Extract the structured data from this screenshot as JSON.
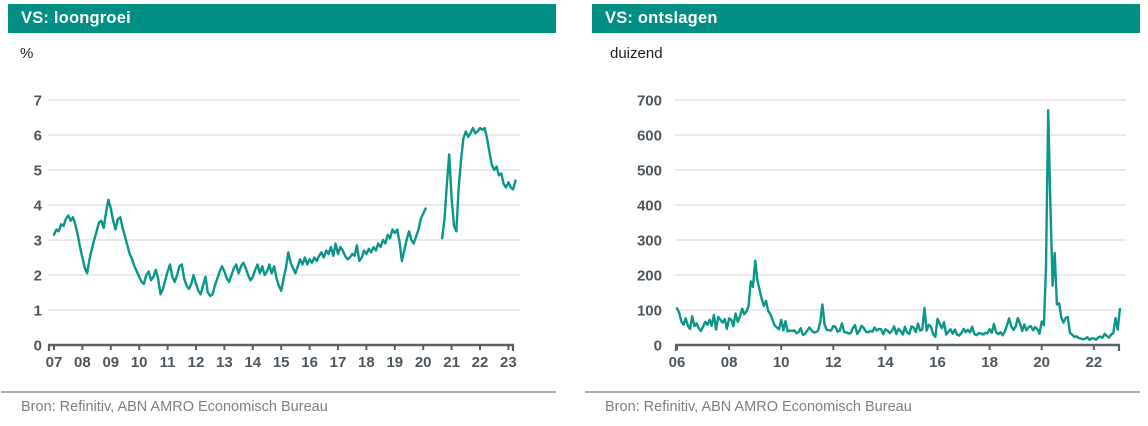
{
  "panels": [
    {
      "title": "VS: loongroei",
      "unit": "%",
      "source": "Bron: Refinitiv, ABN AMRO Economisch Bureau"
    },
    {
      "title": "VS: ontslagen",
      "unit": "duizend",
      "source": "Bron: Refinitiv, ABN AMRO Economisch Bureau"
    }
  ],
  "colors": {
    "header_background": "#008f82",
    "line": "#0a9688",
    "gridline": "#e4e4e4",
    "axis": "#5a6166",
    "tick_text": "#4f575e",
    "source_text": "#7d8184"
  },
  "chart_data": [
    {
      "type": "line",
      "title": "VS: loongroei",
      "ylabel": "%",
      "ylim": [
        0,
        7
      ],
      "yticks": [
        0,
        1,
        2,
        3,
        4,
        5,
        6,
        7
      ],
      "xtick_years": [
        2007,
        2008,
        2009,
        2010,
        2011,
        2012,
        2013,
        2014,
        2015,
        2016,
        2017,
        2018,
        2019,
        2020,
        2021,
        2022,
        2023
      ],
      "xtick_labels": [
        "07",
        "08",
        "09",
        "10",
        "11",
        "12",
        "13",
        "14",
        "15",
        "16",
        "17",
        "18",
        "19",
        "20",
        "21",
        "22",
        "23"
      ],
      "grid": "horizontal",
      "legend": "none",
      "series": [
        {
          "name": "loongroei",
          "freq": "monthly",
          "x_start": 2007.0,
          "values": [
            3.15,
            3.3,
            3.25,
            3.45,
            3.4,
            3.6,
            3.7,
            3.55,
            3.65,
            3.45,
            3.15,
            2.8,
            2.5,
            2.2,
            2.05,
            2.45,
            2.75,
            3.0,
            3.25,
            3.5,
            3.55,
            3.35,
            3.8,
            4.15,
            3.9,
            3.55,
            3.3,
            3.6,
            3.65,
            3.35,
            3.1,
            2.85,
            2.6,
            2.45,
            2.25,
            2.1,
            1.95,
            1.8,
            1.75,
            2.0,
            2.1,
            1.85,
            1.95,
            2.15,
            1.9,
            1.45,
            1.6,
            1.85,
            2.1,
            2.3,
            1.95,
            1.8,
            2.0,
            2.25,
            2.3,
            1.9,
            1.7,
            1.6,
            1.75,
            2.0,
            1.75,
            1.55,
            1.45,
            1.7,
            1.95,
            1.5,
            1.4,
            1.45,
            1.7,
            1.9,
            2.1,
            2.25,
            2.1,
            1.9,
            1.8,
            2.0,
            2.2,
            2.3,
            2.05,
            2.25,
            2.35,
            2.2,
            2.0,
            1.85,
            1.95,
            2.15,
            2.3,
            2.05,
            2.25,
            2.0,
            2.1,
            2.3,
            2.05,
            2.25,
            1.9,
            1.7,
            1.55,
            1.9,
            2.2,
            2.65,
            2.35,
            2.2,
            2.05,
            2.25,
            2.45,
            2.3,
            2.5,
            2.3,
            2.45,
            2.35,
            2.5,
            2.4,
            2.55,
            2.65,
            2.5,
            2.7,
            2.6,
            2.8,
            2.55,
            2.9,
            2.6,
            2.8,
            2.7,
            2.55,
            2.45,
            2.5,
            2.6,
            2.55,
            2.85,
            2.4,
            2.5,
            2.7,
            2.6,
            2.75,
            2.65,
            2.8,
            2.7,
            2.9,
            2.8,
            3.0,
            2.9,
            3.15,
            3.05,
            3.3,
            3.2,
            3.3,
            2.95,
            2.4,
            2.7,
            3.0,
            3.25,
            3.0,
            2.9,
            3.1,
            3.3,
            3.6,
            3.75,
            3.9,
            null,
            null,
            null,
            null,
            null,
            null,
            3.05,
            3.6,
            4.6,
            5.45,
            4.2,
            3.4,
            3.25,
            4.5,
            5.3,
            5.9,
            6.1,
            5.95,
            6.05,
            6.2,
            6.05,
            6.1,
            6.2,
            6.15,
            6.2,
            5.9,
            5.5,
            5.15,
            5.0,
            5.1,
            4.85,
            4.9,
            4.6,
            4.5,
            4.65,
            4.5,
            4.45,
            4.7
          ]
        }
      ]
    },
    {
      "type": "line",
      "title": "VS: ontslagen",
      "ylabel": "duizend",
      "ylim": [
        0,
        700
      ],
      "yticks": [
        0,
        100,
        200,
        300,
        400,
        500,
        600,
        700
      ],
      "xtick_years": [
        2006,
        2008,
        2010,
        2012,
        2014,
        2016,
        2018,
        2020,
        2022
      ],
      "xtick_labels": [
        "06",
        "08",
        "10",
        "12",
        "14",
        "16",
        "18",
        "20",
        "22"
      ],
      "grid": "horizontal",
      "legend": "none",
      "series": [
        {
          "name": "ontslagen",
          "freq": "monthly",
          "x_start": 2006.0,
          "values": [
            105,
            92,
            68,
            58,
            76,
            55,
            46,
            82,
            54,
            62,
            48,
            40,
            52,
            66,
            58,
            72,
            55,
            86,
            44,
            80,
            72,
            64,
            74,
            46,
            76,
            72,
            54,
            90,
            66,
            82,
            104,
            88,
            96,
            112,
            182,
            166,
            241,
            186,
            158,
            132,
            112,
            126,
            97,
            88,
            72,
            56,
            50,
            45,
            72,
            42,
            68,
            39,
            41,
            40,
            42,
            34,
            37,
            48,
            29,
            32,
            42,
            50,
            41,
            36,
            37,
            41,
            66,
            116,
            58,
            43,
            42,
            41,
            54,
            52,
            38,
            41,
            62,
            37,
            36,
            33,
            34,
            48,
            57,
            32,
            40,
            55,
            49,
            38,
            36,
            40,
            38,
            50,
            41,
            46,
            45,
            31,
            45,
            41,
            34,
            40,
            53,
            31,
            46,
            40,
            30,
            52,
            36,
            32,
            53,
            50,
            37,
            61,
            41,
            44,
            106,
            41,
            58,
            51,
            31,
            23,
            75,
            61,
            48,
            65,
            30,
            38,
            45,
            32,
            44,
            30,
            27,
            34,
            46,
            37,
            43,
            36,
            52,
            31,
            28,
            34,
            33,
            30,
            35,
            33,
            45,
            35,
            60,
            36,
            31,
            37,
            28,
            39,
            56,
            76,
            53,
            43,
            53,
            77,
            61,
            40,
            59,
            42,
            51,
            54,
            42,
            51,
            45,
            32,
            67,
            57,
            222,
            671,
            397,
            170,
            263,
            116,
            119,
            80,
            64,
            77,
            80,
            35,
            30,
            23,
            25,
            20,
            19,
            16,
            18,
            22,
            15,
            19,
            19,
            15,
            21,
            24,
            21,
            32,
            26,
            21,
            30,
            34,
            77,
            44,
            103
          ]
        }
      ]
    }
  ]
}
